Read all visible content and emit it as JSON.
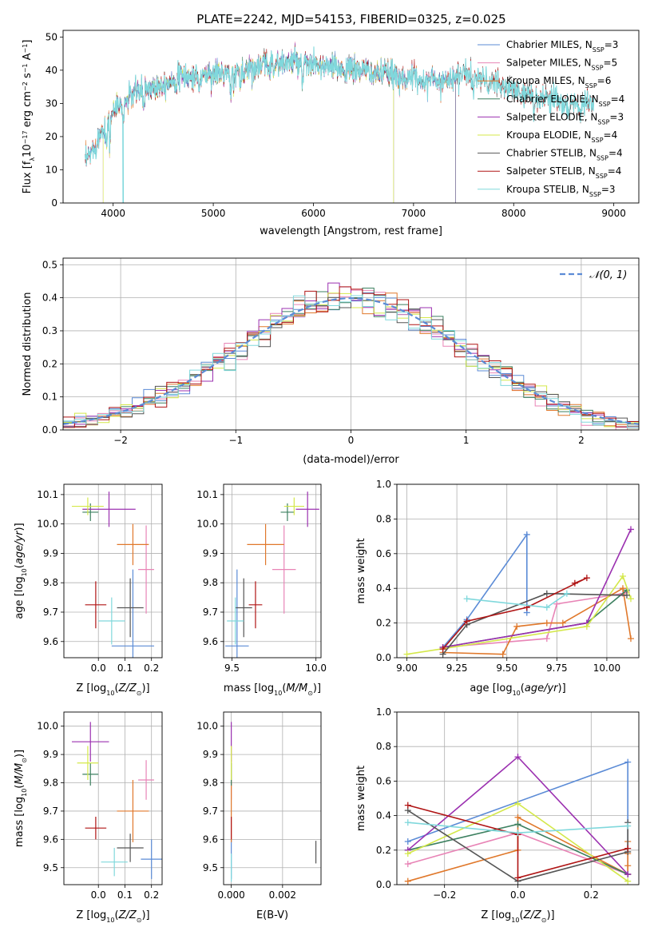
{
  "title": "PLATE=2242, MJD=54153, FIBERID=0325, z=0.025",
  "colors": {
    "Chabrier MILES": "#5b8bd6",
    "Salpeter MILES": "#e884b6",
    "Kroupa MILES": "#e0782b",
    "Chabrier ELODIE": "#3d8060",
    "Salpeter ELODIE": "#9b30b0",
    "Kroupa ELODIE": "#d4e84a",
    "Chabrier STELIB": "#555555",
    "Salpeter STELIB": "#b01515",
    "Kroupa STELIB": "#80d8dc"
  },
  "legend_entries": [
    "Chabrier MILES, N_SSP=3",
    "Salpeter MILES, N_SSP=5",
    "Kroupa MILES, N_SSP=6",
    "Chabrier ELODIE, N_SSP=4",
    "Salpeter ELODIE, N_SSP=3",
    "Kroupa ELODIE, N_SSP=4",
    "Chabrier STELIB, N_SSP=4",
    "Salpeter STELIB, N_SSP=4",
    "Kroupa STELIB, N_SSP=3"
  ],
  "chart_data": [
    {
      "id": "spectrum",
      "type": "line",
      "xlabel": "wavelength [Angstrom, rest frame]",
      "ylabel": "Flux [f_λ 10^-17 erg cm^-2 s^-1 A^-1]",
      "xlim": [
        3500,
        9250
      ],
      "ylim": [
        0,
        52
      ],
      "xticks": [
        4000,
        5000,
        6000,
        7000,
        8000,
        9000
      ],
      "yticks": [
        0,
        10,
        20,
        30,
        40,
        50
      ],
      "grid": false,
      "legend_position": "top-right",
      "continuum": [
        [
          3720,
          12
        ],
        [
          3800,
          16
        ],
        [
          3900,
          23
        ],
        [
          4000,
          28
        ],
        [
          4100,
          30
        ],
        [
          4200,
          33
        ],
        [
          4300,
          34
        ],
        [
          4400,
          35
        ],
        [
          4500,
          36
        ],
        [
          4600,
          37
        ],
        [
          4700,
          38
        ],
        [
          4800,
          38
        ],
        [
          4900,
          38.5
        ],
        [
          5000,
          39
        ],
        [
          5100,
          39
        ],
        [
          5200,
          38.5
        ],
        [
          5300,
          40
        ],
        [
          5400,
          41
        ],
        [
          5500,
          41.5
        ],
        [
          5600,
          42
        ],
        [
          5700,
          42
        ],
        [
          5800,
          42.5
        ],
        [
          5900,
          42
        ],
        [
          6000,
          41.5
        ],
        [
          6100,
          41
        ],
        [
          6200,
          40.5
        ],
        [
          6300,
          40.5
        ],
        [
          6400,
          40
        ],
        [
          6500,
          40
        ],
        [
          6600,
          39.5
        ],
        [
          6700,
          39
        ],
        [
          6800,
          38.5
        ],
        [
          6900,
          38
        ],
        [
          7000,
          37.5
        ],
        [
          7100,
          37
        ],
        [
          7200,
          37
        ],
        [
          7300,
          37
        ],
        [
          7400,
          38
        ],
        [
          7500,
          39
        ],
        [
          7600,
          38
        ],
        [
          7700,
          37
        ],
        [
          7800,
          36
        ],
        [
          7900,
          35
        ],
        [
          8000,
          34
        ],
        [
          8100,
          33
        ],
        [
          8200,
          32
        ],
        [
          8300,
          31.5
        ],
        [
          8400,
          31.5
        ],
        [
          8500,
          30.5
        ],
        [
          8600,
          30
        ],
        [
          8700,
          30.5
        ],
        [
          8800,
          30.5
        ]
      ],
      "spectrum_ranges": {
        "Chabrier MILES": [
          3700,
          7420
        ],
        "Salpeter MILES": [
          3700,
          7420
        ],
        "Kroupa MILES": [
          3700,
          7420
        ],
        "Chabrier ELODIE": [
          3900,
          6800
        ],
        "Salpeter ELODIE": [
          3900,
          6800
        ],
        "Kroupa ELODIE": [
          3900,
          6800
        ],
        "Chabrier STELIB": [
          3720,
          8800
        ],
        "Salpeter STELIB": [
          3720,
          8800
        ],
        "Kroupa STELIB": [
          3720,
          8800
        ]
      }
    },
    {
      "id": "residuals",
      "type": "histogram",
      "xlabel": "(data-model)/error",
      "ylabel": "Normed distribution",
      "xlim": [
        -2.5,
        2.5
      ],
      "ylim": [
        0,
        0.52
      ],
      "xticks": [
        -2,
        -1,
        0,
        1,
        2
      ],
      "yticks": [
        0.0,
        0.1,
        0.2,
        0.3,
        0.4,
        0.5
      ],
      "grid": true,
      "legend": "𝒩(0, 1)",
      "legend_position": "top-right",
      "bin_width": 0.1
    },
    {
      "id": "age_vs_Z",
      "type": "errorbar",
      "xlabel": "Z [log10(Z/Z⊙)]",
      "ylabel": "age [log10(age/yr)]",
      "xlim": [
        -0.13,
        0.24
      ],
      "ylim": [
        9.545,
        10.135
      ],
      "xticks": [
        0.0,
        0.1,
        0.2
      ],
      "yticks": [
        9.6,
        9.7,
        9.8,
        9.9,
        10.0,
        10.1
      ],
      "grid": true,
      "points": [
        {
          "model": "Chabrier MILES",
          "x": 0.13,
          "xerr": 0.08,
          "y": 9.585,
          "yerr": 0.26
        },
        {
          "model": "Salpeter MILES",
          "x": 0.18,
          "xerr": 0.03,
          "y": 9.845,
          "yerr": 0.15
        },
        {
          "model": "Kroupa MILES",
          "x": 0.13,
          "xerr": 0.06,
          "y": 9.93,
          "yerr": 0.07
        },
        {
          "model": "Chabrier ELODIE",
          "x": -0.03,
          "xerr": 0.03,
          "y": 10.04,
          "yerr": 0.03
        },
        {
          "model": "Salpeter ELODIE",
          "x": 0.04,
          "xerr": 0.1,
          "y": 10.05,
          "yerr": 0.06
        },
        {
          "model": "Kroupa ELODIE",
          "x": -0.04,
          "xerr": 0.06,
          "y": 10.06,
          "yerr": 0.03
        },
        {
          "model": "Chabrier STELIB",
          "x": 0.12,
          "xerr": 0.05,
          "y": 9.715,
          "yerr": 0.1
        },
        {
          "model": "Salpeter STELIB",
          "x": -0.01,
          "xerr": 0.04,
          "y": 9.725,
          "yerr": 0.08
        },
        {
          "model": "Kroupa STELIB",
          "x": 0.05,
          "xerr": 0.05,
          "y": 9.67,
          "yerr": 0.08
        }
      ]
    },
    {
      "id": "age_vs_mass",
      "type": "errorbar",
      "xlabel": "mass [log10(M/M⊙)]",
      "ylabel": "",
      "xlim": [
        9.45,
        10.03
      ],
      "ylim": [
        9.545,
        10.135
      ],
      "xticks": [
        9.5,
        10.0
      ],
      "yticks": [
        9.6,
        9.7,
        9.8,
        9.9,
        10.0,
        10.1
      ],
      "grid": true,
      "points": [
        {
          "model": "Chabrier MILES",
          "x": 9.53,
          "xerr": 0.07,
          "y": 9.585,
          "yerr": 0.26
        },
        {
          "model": "Salpeter MILES",
          "x": 9.81,
          "xerr": 0.07,
          "y": 9.845,
          "yerr": 0.15
        },
        {
          "model": "Kroupa MILES",
          "x": 9.7,
          "xerr": 0.11,
          "y": 9.93,
          "yerr": 0.07
        },
        {
          "model": "Chabrier ELODIE",
          "x": 9.83,
          "xerr": 0.04,
          "y": 10.04,
          "yerr": 0.03
        },
        {
          "model": "Salpeter ELODIE",
          "x": 9.95,
          "xerr": 0.07,
          "y": 10.05,
          "yerr": 0.06
        },
        {
          "model": "Kroupa ELODIE",
          "x": 9.87,
          "xerr": 0.06,
          "y": 10.06,
          "yerr": 0.03
        },
        {
          "model": "Chabrier STELIB",
          "x": 9.57,
          "xerr": 0.05,
          "y": 9.715,
          "yerr": 0.1
        },
        {
          "model": "Salpeter STELIB",
          "x": 9.64,
          "xerr": 0.04,
          "y": 9.725,
          "yerr": 0.08
        },
        {
          "model": "Kroupa STELIB",
          "x": 9.52,
          "xerr": 0.05,
          "y": 9.67,
          "yerr": 0.08
        }
      ]
    },
    {
      "id": "weight_vs_age",
      "type": "line",
      "xlabel": "age [log10(age/yr)]",
      "ylabel": "mass weight",
      "xlim": [
        8.95,
        10.16
      ],
      "ylim": [
        0.0,
        1.0
      ],
      "xticks": [
        9.0,
        9.25,
        9.5,
        9.75,
        10.0
      ],
      "yticks": [
        0.0,
        0.2,
        0.4,
        0.6,
        0.8,
        1.0
      ],
      "grid": true,
      "series": [
        {
          "model": "Chabrier MILES",
          "points": [
            [
              9.18,
              0.06
            ],
            [
              9.3,
              0.22
            ],
            [
              9.6,
              0.71
            ],
            [
              9.6,
              0.26
            ]
          ]
        },
        {
          "model": "Salpeter MILES",
          "points": [
            [
              9.18,
              0.06
            ],
            [
              9.7,
              0.11
            ],
            [
              9.75,
              0.31
            ],
            [
              10.08,
              0.37
            ],
            [
              10.1,
              0.38
            ]
          ]
        },
        {
          "model": "Kroupa MILES",
          "points": [
            [
              9.18,
              0.03
            ],
            [
              9.48,
              0.02
            ],
            [
              9.55,
              0.18
            ],
            [
              9.7,
              0.2
            ],
            [
              9.78,
              0.2
            ],
            [
              10.08,
              0.4
            ],
            [
              10.12,
              0.11
            ]
          ]
        },
        {
          "model": "Chabrier ELODIE",
          "points": [
            [
              9.18,
              0.06
            ],
            [
              9.9,
              0.2
            ],
            [
              10.1,
              0.39
            ]
          ]
        },
        {
          "model": "Salpeter ELODIE",
          "points": [
            [
              9.18,
              0.06
            ],
            [
              9.9,
              0.2
            ],
            [
              10.12,
              0.74
            ]
          ]
        },
        {
          "model": "Kroupa ELODIE",
          "points": [
            [
              9.0,
              0.02
            ],
            [
              9.9,
              0.18
            ],
            [
              10.08,
              0.47
            ],
            [
              10.12,
              0.34
            ]
          ]
        },
        {
          "model": "Chabrier STELIB",
          "points": [
            [
              9.18,
              0.02
            ],
            [
              9.3,
              0.19
            ],
            [
              9.7,
              0.37
            ],
            [
              10.1,
              0.36
            ]
          ]
        },
        {
          "model": "Salpeter STELIB",
          "points": [
            [
              9.18,
              0.05
            ],
            [
              9.3,
              0.21
            ],
            [
              9.6,
              0.29
            ],
            [
              9.9,
              0.46
            ],
            [
              9.84,
              0.43
            ]
          ]
        },
        {
          "model": "Kroupa STELIB",
          "points": [
            [
              9.3,
              0.34
            ],
            [
              9.7,
              0.29
            ],
            [
              9.8,
              0.37
            ]
          ]
        }
      ]
    },
    {
      "id": "mass_vs_Z",
      "type": "errorbar",
      "xlabel": "Z [log10(Z/Z⊙)]",
      "ylabel": "mass [log10(M/M⊙)]",
      "xlim": [
        -0.13,
        0.24
      ],
      "ylim": [
        9.44,
        10.05
      ],
      "xticks": [
        0.0,
        0.1,
        0.2
      ],
      "yticks": [
        9.5,
        9.6,
        9.7,
        9.8,
        9.9,
        10.0
      ],
      "grid": true,
      "points": [
        {
          "model": "Chabrier MILES",
          "x": 0.2,
          "xerr": 0.04,
          "y": 9.53,
          "yerr": 0.07
        },
        {
          "model": "Salpeter MILES",
          "x": 0.18,
          "xerr": 0.03,
          "y": 9.81,
          "yerr": 0.07
        },
        {
          "model": "Kroupa MILES",
          "x": 0.13,
          "xerr": 0.06,
          "y": 9.7,
          "yerr": 0.11
        },
        {
          "model": "Chabrier ELODIE",
          "x": -0.03,
          "xerr": 0.03,
          "y": 9.83,
          "yerr": 0.04
        },
        {
          "model": "Salpeter ELODIE",
          "x": -0.03,
          "xerr": 0.07,
          "y": 9.945,
          "yerr": 0.07
        },
        {
          "model": "Kroupa ELODIE",
          "x": -0.04,
          "xerr": 0.04,
          "y": 9.87,
          "yerr": 0.06
        },
        {
          "model": "Chabrier STELIB",
          "x": 0.12,
          "xerr": 0.05,
          "y": 9.57,
          "yerr": 0.05
        },
        {
          "model": "Salpeter STELIB",
          "x": -0.01,
          "xerr": 0.04,
          "y": 9.64,
          "yerr": 0.04
        },
        {
          "model": "Kroupa STELIB",
          "x": 0.06,
          "xerr": 0.05,
          "y": 9.52,
          "yerr": 0.05
        }
      ]
    },
    {
      "id": "mass_vs_EBV",
      "type": "errorbar",
      "xlabel": "E(B-V)",
      "ylabel": "",
      "xlim": [
        -0.0003,
        0.0035
      ],
      "ylim": [
        9.44,
        10.05
      ],
      "xticks": [
        0.0,
        0.002
      ],
      "yticks": [
        9.5,
        9.6,
        9.7,
        9.8,
        9.9,
        10.0
      ],
      "grid": true,
      "points": [
        {
          "model": "Chabrier MILES",
          "x": 0.0,
          "xerr": 0.0,
          "y": 9.53,
          "yerr": 0.07
        },
        {
          "model": "Salpeter MILES",
          "x": 0.0,
          "xerr": 0.0,
          "y": 9.81,
          "yerr": 0.07
        },
        {
          "model": "Kroupa MILES",
          "x": 0.0,
          "xerr": 0.0,
          "y": 9.7,
          "yerr": 0.11
        },
        {
          "model": "Chabrier ELODIE",
          "x": 0.0,
          "xerr": 0.0,
          "y": 9.83,
          "yerr": 0.04
        },
        {
          "model": "Salpeter ELODIE",
          "x": 0.0,
          "xerr": 0.0,
          "y": 9.945,
          "yerr": 0.07
        },
        {
          "model": "Kroupa ELODIE",
          "x": 0.0,
          "xerr": 0.0,
          "y": 9.87,
          "yerr": 0.06
        },
        {
          "model": "Chabrier STELIB",
          "x": 0.0033,
          "xerr": 0.0,
          "y": 9.555,
          "yerr": 0.04
        },
        {
          "model": "Salpeter STELIB",
          "x": 0.0,
          "xerr": 0.0,
          "y": 9.64,
          "yerr": 0.04
        },
        {
          "model": "Kroupa STELIB",
          "x": 0.0,
          "xerr": 0.0,
          "y": 9.5,
          "yerr": 0.05
        }
      ]
    },
    {
      "id": "weight_vs_Z",
      "type": "line",
      "xlabel": "Z [log10(Z/Z⊙)]",
      "ylabel": "mass weight",
      "xlim": [
        -0.33,
        0.33
      ],
      "ylim": [
        0.0,
        1.0
      ],
      "xticks": [
        -0.2,
        0.0,
        0.2
      ],
      "yticks": [
        0.0,
        0.2,
        0.4,
        0.6,
        0.8,
        1.0
      ],
      "grid": true,
      "series": [
        {
          "model": "Chabrier MILES",
          "points": [
            [
              -0.3,
              0.25
            ],
            [
              0.3,
              0.71
            ],
            [
              0.3,
              0.06
            ]
          ]
        },
        {
          "model": "Salpeter MILES",
          "points": [
            [
              -0.3,
              0.12
            ],
            [
              0.0,
              0.3
            ],
            [
              0.3,
              0.06
            ]
          ]
        },
        {
          "model": "Kroupa MILES",
          "points": [
            [
              -0.3,
              0.02
            ],
            [
              0.0,
              0.2
            ],
            [
              0.0,
              0.39
            ],
            [
              0.3,
              0.06
            ],
            [
              0.3,
              0.11
            ],
            [
              0.3,
              0.18
            ],
            [
              0.3,
              0.25
            ]
          ]
        },
        {
          "model": "Chabrier ELODIE",
          "points": [
            [
              -0.3,
              0.2
            ],
            [
              0.0,
              0.35
            ],
            [
              0.3,
              0.06
            ]
          ]
        },
        {
          "model": "Salpeter ELODIE",
          "points": [
            [
              -0.3,
              0.2
            ],
            [
              0.0,
              0.74
            ],
            [
              0.3,
              0.06
            ]
          ]
        },
        {
          "model": "Kroupa ELODIE",
          "points": [
            [
              -0.3,
              0.18
            ],
            [
              0.0,
              0.47
            ],
            [
              0.3,
              0.02
            ]
          ]
        },
        {
          "model": "Chabrier STELIB",
          "points": [
            [
              -0.3,
              0.43
            ],
            [
              0.0,
              0.02
            ],
            [
              0.3,
              0.19
            ],
            [
              0.3,
              0.36
            ]
          ]
        },
        {
          "model": "Salpeter STELIB",
          "points": [
            [
              -0.3,
              0.46
            ],
            [
              0.0,
              0.29
            ],
            [
              0.0,
              0.04
            ],
            [
              0.3,
              0.21
            ]
          ]
        },
        {
          "model": "Kroupa STELIB",
          "points": [
            [
              -0.3,
              0.36
            ],
            [
              0.0,
              0.3
            ],
            [
              0.3,
              0.34
            ]
          ]
        }
      ]
    }
  ]
}
